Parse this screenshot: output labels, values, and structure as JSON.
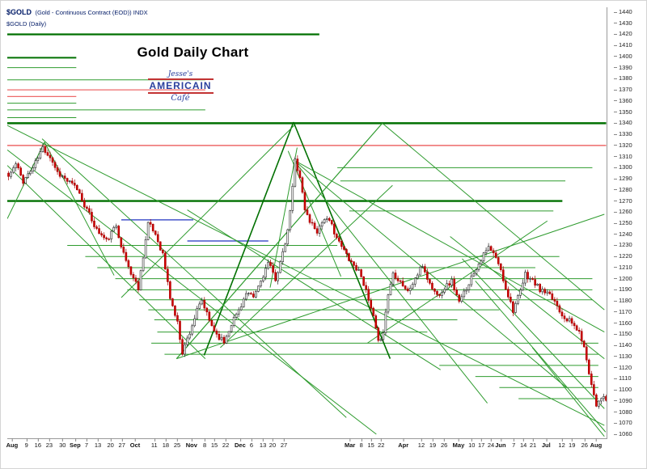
{
  "header": {
    "symbol": "$GOLD",
    "description": "(Gold - Continuous Contract (EOD)) INDX",
    "subtitle": "$GOLD (Daily)"
  },
  "title": "Gold Daily Chart",
  "logo": {
    "top": "Jesse's",
    "main": "AMERICAIN",
    "bottom": "Café"
  },
  "chart_data": {
    "type": "candlestick",
    "title": "Gold Daily Chart",
    "y_axis": {
      "min": 1060,
      "max": 1440,
      "step": 10
    },
    "num_bars": 245,
    "colors": {
      "g": "#2e9b2e",
      "dg": "#007000",
      "r": "#ee6a6a",
      "b": "#4455cc",
      "up_fill": "#ffffff",
      "up_stroke": "#222222",
      "down_fill": "#d40000",
      "down_stroke": "#a00000"
    },
    "price_anchors": [
      [
        0,
        1292
      ],
      [
        3,
        1303
      ],
      [
        6,
        1288
      ],
      [
        10,
        1300
      ],
      [
        14,
        1318
      ],
      [
        17,
        1310
      ],
      [
        20,
        1296
      ],
      [
        24,
        1288
      ],
      [
        28,
        1281
      ],
      [
        32,
        1262
      ],
      [
        36,
        1244
      ],
      [
        40,
        1234
      ],
      [
        44,
        1248
      ],
      [
        47,
        1222
      ],
      [
        50,
        1205
      ],
      [
        53,
        1192
      ],
      [
        57,
        1250
      ],
      [
        60,
        1240
      ],
      [
        63,
        1222
      ],
      [
        66,
        1183
      ],
      [
        69,
        1160
      ],
      [
        71,
        1134
      ],
      [
        74,
        1152
      ],
      [
        77,
        1171
      ],
      [
        79,
        1180
      ],
      [
        82,
        1162
      ],
      [
        85,
        1150
      ],
      [
        88,
        1143
      ],
      [
        91,
        1160
      ],
      [
        94,
        1172
      ],
      [
        97,
        1186
      ],
      [
        100,
        1183
      ],
      [
        103,
        1198
      ],
      [
        106,
        1214
      ],
      [
        109,
        1200
      ],
      [
        112,
        1222
      ],
      [
        114,
        1242
      ],
      [
        116,
        1282
      ],
      [
        117,
        1307
      ],
      [
        119,
        1292
      ],
      [
        121,
        1262
      ],
      [
        123,
        1252
      ],
      [
        126,
        1243
      ],
      [
        129,
        1255
      ],
      [
        132,
        1248
      ],
      [
        135,
        1232
      ],
      [
        138,
        1222
      ],
      [
        141,
        1212
      ],
      [
        144,
        1204
      ],
      [
        147,
        1180
      ],
      [
        149,
        1165
      ],
      [
        151,
        1142
      ],
      [
        153,
        1153
      ],
      [
        155,
        1186
      ],
      [
        157,
        1205
      ],
      [
        160,
        1198
      ],
      [
        163,
        1188
      ],
      [
        166,
        1200
      ],
      [
        169,
        1212
      ],
      [
        172,
        1195
      ],
      [
        175,
        1185
      ],
      [
        178,
        1192
      ],
      [
        181,
        1198
      ],
      [
        184,
        1178
      ],
      [
        187,
        1192
      ],
      [
        190,
        1206
      ],
      [
        193,
        1218
      ],
      [
        196,
        1228
      ],
      [
        198,
        1222
      ],
      [
        200,
        1214
      ],
      [
        203,
        1192
      ],
      [
        206,
        1172
      ],
      [
        209,
        1188
      ],
      [
        211,
        1204
      ],
      [
        214,
        1198
      ],
      [
        217,
        1190
      ],
      [
        220,
        1186
      ],
      [
        223,
        1180
      ],
      [
        226,
        1168
      ],
      [
        229,
        1162
      ],
      [
        232,
        1155
      ],
      [
        234,
        1146
      ],
      [
        236,
        1128
      ],
      [
        238,
        1105
      ],
      [
        240,
        1087
      ],
      [
        242,
        1094
      ],
      [
        244,
        1090
      ]
    ],
    "horizontal_lines": [
      [
        1420,
        0.0,
        0.52,
        "dg",
        2.2
      ],
      [
        1399,
        0.0,
        0.115,
        "dg",
        2.0
      ],
      [
        1390,
        0.0,
        0.115,
        "g",
        1
      ],
      [
        1379,
        0.0,
        0.33,
        "g",
        1
      ],
      [
        1370,
        0.0,
        0.33,
        "r",
        1.3
      ],
      [
        1364,
        0.0,
        0.115,
        "r",
        1.3
      ],
      [
        1358,
        0.0,
        0.115,
        "g",
        1
      ],
      [
        1352,
        0.0,
        0.33,
        "g",
        1
      ],
      [
        1345,
        0.0,
        0.115,
        "g",
        1
      ],
      [
        1340,
        0.0,
        0.998,
        "dg",
        2.4
      ],
      [
        1320,
        0.0,
        0.998,
        "r",
        1.5
      ],
      [
        1300,
        0.55,
        0.975,
        "g",
        1
      ],
      [
        1288,
        0.555,
        0.93,
        "g",
        1
      ],
      [
        1270,
        0.0,
        0.925,
        "dg",
        2.4
      ],
      [
        1261,
        0.57,
        0.91,
        "g",
        1
      ],
      [
        1253,
        0.19,
        0.31,
        "b",
        1.5
      ],
      [
        1234,
        0.3,
        0.435,
        "b",
        1.5
      ],
      [
        1230,
        0.1,
        0.55,
        "g",
        1
      ],
      [
        1220,
        0.13,
        0.92,
        "g",
        1
      ],
      [
        1210,
        0.15,
        0.88,
        "g",
        1
      ],
      [
        1200,
        0.18,
        0.975,
        "g",
        1
      ],
      [
        1190,
        0.2,
        0.975,
        "g",
        1
      ],
      [
        1181,
        0.22,
        0.975,
        "g",
        1
      ],
      [
        1172,
        0.235,
        0.82,
        "g",
        1
      ],
      [
        1163,
        0.245,
        0.75,
        "g",
        1
      ],
      [
        1152,
        0.25,
        0.7,
        "g",
        1
      ],
      [
        1142,
        0.24,
        0.985,
        "g",
        1
      ],
      [
        1132,
        0.262,
        0.985,
        "g",
        1
      ],
      [
        1122,
        0.72,
        0.985,
        "g",
        1
      ],
      [
        1112,
        0.78,
        0.985,
        "g",
        1
      ],
      [
        1102,
        0.82,
        0.985,
        "g",
        1
      ],
      [
        1092,
        0.852,
        0.985,
        "g",
        1
      ]
    ],
    "diagonal_lines": [
      [
        0.0,
        1338,
        0.995,
        1068,
        "g",
        1
      ],
      [
        0.0,
        1316,
        0.615,
        1060,
        "g",
        1
      ],
      [
        0.058,
        1326,
        0.565,
        1075,
        "g",
        1
      ],
      [
        0.0,
        1302,
        0.33,
        1128,
        "g",
        1
      ],
      [
        0.0,
        1254,
        0.062,
        1323,
        "g",
        1
      ],
      [
        0.062,
        1323,
        0.178,
        1203,
        "g",
        1
      ],
      [
        0.328,
        1131,
        0.477,
        1341,
        "dg",
        1.6
      ],
      [
        0.477,
        1341,
        0.638,
        1128,
        "dg",
        1.6
      ],
      [
        0.282,
        1128,
        0.625,
        1340,
        "g",
        1.2
      ],
      [
        0.282,
        1128,
        0.995,
        1258,
        "g",
        1
      ],
      [
        0.19,
        1183,
        0.478,
        1338,
        "g",
        1
      ],
      [
        0.477,
        1307,
        0.995,
        1152,
        "g",
        1
      ],
      [
        0.477,
        1307,
        0.932,
        1102,
        "g",
        1
      ],
      [
        0.477,
        1307,
        0.8,
        1088,
        "g",
        1
      ],
      [
        0.738,
        1238,
        0.995,
        1128,
        "g",
        1
      ],
      [
        0.758,
        1218,
        0.995,
        1083,
        "g",
        1
      ],
      [
        0.78,
        1198,
        0.997,
        1062,
        "g",
        1
      ],
      [
        0.3,
        1262,
        0.722,
        1118,
        "g",
        1
      ],
      [
        0.6,
        1142,
        0.9,
        1252,
        "g",
        1
      ],
      [
        0.438,
        1192,
        0.483,
        1318,
        "g",
        1
      ],
      [
        0.468,
        1315,
        0.556,
        1202,
        "g",
        1
      ],
      [
        0.355,
        1138,
        0.642,
        1284,
        "g",
        1
      ],
      [
        0.625,
        1340,
        0.995,
        1172,
        "g",
        1
      ],
      [
        0.875,
        1138,
        0.995,
        1058,
        "g",
        1
      ]
    ],
    "x_axis": {
      "labels": [
        [
          "Aug",
          0.008,
          1
        ],
        [
          "9",
          0.032,
          0
        ],
        [
          "16",
          0.051,
          0
        ],
        [
          "23",
          0.07,
          0
        ],
        [
          "30",
          0.092,
          0
        ],
        [
          "Sep",
          0.113,
          1
        ],
        [
          "7",
          0.132,
          0
        ],
        [
          "13",
          0.151,
          0
        ],
        [
          "20",
          0.172,
          0
        ],
        [
          "27",
          0.191,
          0
        ],
        [
          "Oct",
          0.213,
          1
        ],
        [
          "11",
          0.245,
          0
        ],
        [
          "18",
          0.264,
          0
        ],
        [
          "25",
          0.283,
          0
        ],
        [
          "Nov",
          0.307,
          1
        ],
        [
          "8",
          0.329,
          0
        ],
        [
          "15",
          0.345,
          0
        ],
        [
          "22",
          0.364,
          0
        ],
        [
          "Dec",
          0.388,
          1
        ],
        [
          "6",
          0.407,
          0
        ],
        [
          "13",
          0.426,
          0
        ],
        [
          "20",
          0.442,
          0
        ],
        [
          "27",
          0.461,
          0
        ],
        [
          "Mar",
          0.571,
          1
        ],
        [
          "8",
          0.59,
          0
        ],
        [
          "15",
          0.606,
          0
        ],
        [
          "22",
          0.623,
          0
        ],
        [
          "Apr",
          0.66,
          1
        ],
        [
          "12",
          0.69,
          0
        ],
        [
          "19",
          0.709,
          0
        ],
        [
          "26",
          0.728,
          0
        ],
        [
          "May",
          0.752,
          1
        ],
        [
          "10",
          0.774,
          0
        ],
        [
          "17",
          0.79,
          0
        ],
        [
          "24",
          0.806,
          0
        ],
        [
          "Jun",
          0.822,
          1
        ],
        [
          "7",
          0.844,
          0
        ],
        [
          "14",
          0.86,
          0
        ],
        [
          "21",
          0.876,
          0
        ],
        [
          "Jul",
          0.898,
          1
        ],
        [
          "12",
          0.924,
          0
        ],
        [
          "19",
          0.941,
          0
        ],
        [
          "26",
          0.962,
          0
        ],
        [
          "Aug",
          0.981,
          1
        ]
      ]
    }
  }
}
